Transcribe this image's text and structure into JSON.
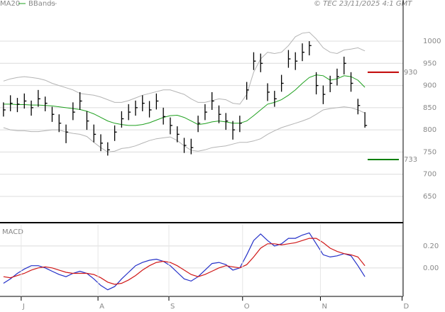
{
  "chart_data": [
    {
      "type": "ohlc",
      "credit": "© TEC 23/11/2025 4:1 GMT",
      "xlim": [
        0,
        116
      ],
      "ylim": [
        594,
        1064
      ],
      "yticks": [
        650,
        700,
        750,
        800,
        850,
        900,
        950,
        1000
      ],
      "grid": true,
      "x": [
        1,
        3,
        5,
        7,
        9,
        11,
        13,
        15,
        17,
        19,
        21,
        23,
        25,
        27,
        29,
        31,
        33,
        35,
        37,
        39,
        41,
        43,
        45,
        47,
        49,
        51,
        53,
        55,
        57,
        59,
        61,
        63,
        65,
        67,
        69,
        71,
        73,
        75,
        77,
        79,
        81,
        83,
        85,
        87,
        89,
        91,
        93,
        95,
        97,
        99,
        101,
        103,
        105
      ],
      "close": [
        845,
        860,
        858,
        865,
        850,
        870,
        860,
        835,
        815,
        795,
        840,
        865,
        820,
        790,
        770,
        755,
        795,
        825,
        840,
        850,
        860,
        845,
        865,
        830,
        810,
        790,
        765,
        760,
        815,
        840,
        865,
        835,
        820,
        800,
        815,
        890,
        955,
        950,
        885,
        870,
        905,
        960,
        955,
        975,
        990,
        900,
        880,
        905,
        920,
        950,
        905,
        855,
        810
      ],
      "high": [
        862,
        878,
        872,
        882,
        866,
        890,
        875,
        852,
        835,
        812,
        862,
        885,
        842,
        812,
        790,
        772,
        810,
        842,
        858,
        866,
        878,
        865,
        882,
        850,
        828,
        808,
        782,
        780,
        832,
        858,
        885,
        855,
        838,
        820,
        832,
        908,
        975,
        972,
        905,
        888,
        924,
        980,
        975,
        995,
        1000,
        930,
        900,
        922,
        938,
        965,
        930,
        870,
        840
      ],
      "low": [
        830,
        842,
        840,
        848,
        832,
        852,
        842,
        818,
        795,
        770,
        822,
        845,
        800,
        772,
        752,
        742,
        775,
        805,
        822,
        832,
        842,
        828,
        846,
        812,
        790,
        772,
        748,
        745,
        795,
        822,
        845,
        815,
        800,
        778,
        795,
        868,
        935,
        930,
        865,
        852,
        886,
        940,
        935,
        955,
        968,
        880,
        858,
        885,
        900,
        925,
        886,
        835,
        805
      ],
      "series": [
        {
          "name": "MA20",
          "color": "#1ea01e",
          "values": [
            858,
            858,
            857,
            857,
            856,
            856,
            855,
            854,
            852,
            850,
            848,
            846,
            842,
            836,
            828,
            820,
            815,
            812,
            810,
            810,
            812,
            816,
            822,
            828,
            832,
            833,
            828,
            820,
            812,
            814,
            818,
            820,
            818,
            815,
            815,
            820,
            832,
            845,
            858,
            862,
            868,
            878,
            890,
            905,
            918,
            924,
            922,
            912,
            915,
            922,
            920,
            912,
            896
          ]
        },
        {
          "name": "BBands",
          "color": "#b4b4b4",
          "values": [
            910,
            915,
            918,
            920,
            918,
            916,
            912,
            905,
            900,
            895,
            890,
            882,
            880,
            878,
            874,
            868,
            862,
            862,
            866,
            872,
            878,
            882,
            886,
            890,
            890,
            885,
            880,
            870,
            862,
            862,
            866,
            870,
            868,
            860,
            858,
            880,
            930,
            960,
            975,
            972,
            975,
            990,
            1010,
            1018,
            1020,
            1005,
            985,
            975,
            972,
            980,
            982,
            985,
            978
          ],
          "lower": [
            805,
            800,
            798,
            798,
            796,
            796,
            798,
            800,
            800,
            795,
            792,
            790,
            785,
            772,
            760,
            750,
            752,
            758,
            760,
            764,
            770,
            776,
            780,
            782,
            784,
            776,
            764,
            754,
            752,
            755,
            760,
            762,
            764,
            768,
            772,
            772,
            775,
            780,
            790,
            798,
            805,
            810,
            815,
            820,
            826,
            835,
            845,
            848,
            850,
            852,
            850,
            845,
            838
          ]
        }
      ],
      "levels": [
        {
          "value": 930,
          "color": "#c00000"
        },
        {
          "value": 733,
          "color": "#008000"
        }
      ]
    },
    {
      "type": "line",
      "title": "MACD",
      "xlim": [
        0,
        116
      ],
      "ylim": [
        -0.26,
        0.4
      ],
      "yticks": [
        {
          "value": 0.2,
          "label": "0.20"
        },
        {
          "value": 0,
          "label": "0.00"
        }
      ],
      "grid": true,
      "xticks": [
        {
          "value": 6.1,
          "label": "J"
        },
        {
          "value": 28.2,
          "label": "A"
        },
        {
          "value": 48.6,
          "label": "S"
        },
        {
          "value": 69.8,
          "label": "O"
        },
        {
          "value": 92.2,
          "label": "N"
        },
        {
          "value": 115.7,
          "label": "D"
        }
      ],
      "x": [
        1,
        3,
        5,
        7,
        9,
        11,
        13,
        15,
        17,
        19,
        21,
        23,
        25,
        27,
        29,
        31,
        33,
        35,
        37,
        39,
        41,
        43,
        45,
        47,
        49,
        51,
        53,
        55,
        57,
        59,
        61,
        63,
        65,
        67,
        69,
        71,
        73,
        75,
        77,
        79,
        81,
        83,
        85,
        87,
        89,
        91,
        93,
        95,
        97,
        99,
        101,
        103,
        105
      ],
      "series": [
        {
          "color": "#2430c8",
          "values": [
            -0.14,
            -0.1,
            -0.05,
            -0.01,
            0.02,
            0.02,
            0.0,
            -0.03,
            -0.06,
            -0.08,
            -0.05,
            -0.03,
            -0.05,
            -0.1,
            -0.16,
            -0.2,
            -0.17,
            -0.1,
            -0.04,
            0.02,
            0.05,
            0.07,
            0.08,
            0.06,
            0.02,
            -0.04,
            -0.1,
            -0.12,
            -0.08,
            -0.02,
            0.04,
            0.05,
            0.03,
            -0.02,
            0.0,
            0.12,
            0.25,
            0.31,
            0.25,
            0.2,
            0.22,
            0.27,
            0.27,
            0.3,
            0.32,
            0.22,
            0.12,
            0.1,
            0.11,
            0.13,
            0.11,
            0.02,
            -0.08
          ]
        },
        {
          "color": "#d01818",
          "values": [
            -0.08,
            -0.09,
            -0.07,
            -0.05,
            -0.02,
            0.0,
            0.01,
            0.0,
            -0.02,
            -0.04,
            -0.05,
            -0.05,
            -0.05,
            -0.06,
            -0.09,
            -0.13,
            -0.15,
            -0.14,
            -0.11,
            -0.07,
            -0.02,
            0.02,
            0.05,
            0.06,
            0.05,
            0.02,
            -0.02,
            -0.06,
            -0.08,
            -0.06,
            -0.03,
            0.0,
            0.02,
            0.01,
            0.0,
            0.03,
            0.1,
            0.18,
            0.22,
            0.22,
            0.21,
            0.22,
            0.23,
            0.25,
            0.27,
            0.27,
            0.23,
            0.18,
            0.15,
            0.13,
            0.12,
            0.1,
            0.02
          ]
        }
      ]
    }
  ]
}
